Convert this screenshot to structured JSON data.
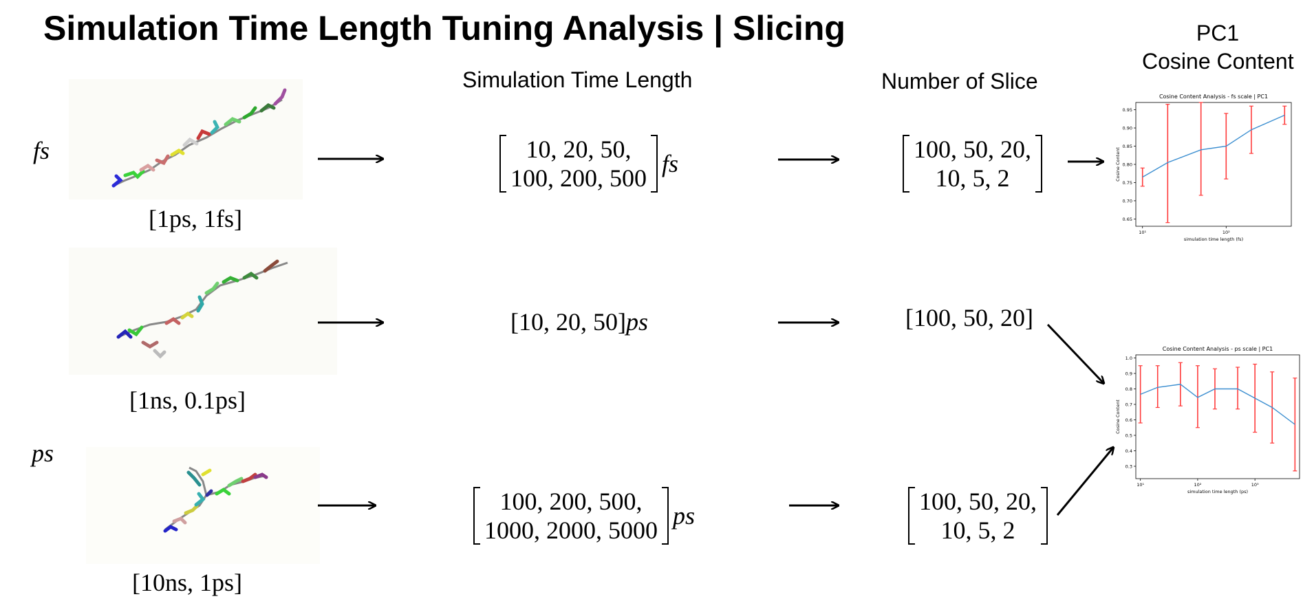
{
  "title": "Simulation Time Length Tuning Analysis | Slicing",
  "headers": {
    "sim_time": "Simulation Time Length",
    "num_slice": "Number of Slice",
    "pc1_line1": "PC1",
    "pc1_line2": "Cosine Content"
  },
  "side_labels": {
    "fs": "fs",
    "ps": "ps"
  },
  "rows": [
    {
      "range": "[1ps, 1fs]",
      "times": [
        "10, 20, 50,",
        "100, 200, 500"
      ],
      "unit": "fs",
      "slices": [
        "100, 50, 20,",
        "10, 5, 2"
      ]
    },
    {
      "range": "[1ns, 0.1ps]",
      "times_inline": "[10, 20, 50]",
      "unit": "ps",
      "slices_inline": "[100, 50, 20]"
    },
    {
      "range": "[10ns, 1ps]",
      "times": [
        "100, 200, 500,",
        "1000, 2000, 5000"
      ],
      "unit": "ps",
      "slices": [
        "100, 50, 20,",
        "10, 5, 2"
      ]
    }
  ],
  "chart_data": [
    {
      "type": "line",
      "title": "Cosine Content Analysis - fs scale | PC1",
      "xlabel": "simulation time length (fs)",
      "ylabel": "Cosine Content",
      "xscale": "log",
      "x": [
        10,
        20,
        50,
        100,
        200,
        500
      ],
      "xticks": [
        "10¹",
        "10²"
      ],
      "ylim": [
        0.63,
        0.97
      ],
      "yticks": [
        "0.65",
        "0.70",
        "0.75",
        "0.80",
        "0.85",
        "0.90",
        "0.95"
      ],
      "series": [
        {
          "values": [
            0.765,
            0.805,
            0.84,
            0.85,
            0.895,
            0.935
          ],
          "err_low": [
            0.74,
            0.64,
            0.715,
            0.76,
            0.83,
            0.91
          ],
          "err_high": [
            0.79,
            0.965,
            0.97,
            0.94,
            0.96,
            0.96
          ]
        }
      ],
      "colors": {
        "line": "#3b8ed0",
        "error": "#ff3b3b"
      }
    },
    {
      "type": "line",
      "title": "Cosine Content Analysis - ps scale | PC1",
      "xlabel": "simulation time length (ps)",
      "ylabel": "Cosine Content",
      "xscale": "log",
      "x": [
        10,
        20,
        50,
        100,
        200,
        500,
        1000,
        2000,
        5000
      ],
      "xticks": [
        "10¹",
        "10²",
        "10³"
      ],
      "ylim": [
        0.22,
        1.02
      ],
      "yticks": [
        "0.3",
        "0.4",
        "0.5",
        "0.6",
        "0.7",
        "0.8",
        "0.9",
        "1.0"
      ],
      "series": [
        {
          "values": [
            0.765,
            0.81,
            0.83,
            0.745,
            0.8,
            0.8,
            0.74,
            0.68,
            0.57
          ],
          "err_low": [
            0.58,
            0.68,
            0.69,
            0.55,
            0.67,
            0.67,
            0.52,
            0.45,
            0.27
          ],
          "err_high": [
            0.95,
            0.95,
            0.97,
            0.95,
            0.93,
            0.94,
            0.96,
            0.91,
            0.87
          ]
        }
      ],
      "colors": {
        "line": "#3b8ed0",
        "error": "#ff3b3b"
      }
    }
  ]
}
